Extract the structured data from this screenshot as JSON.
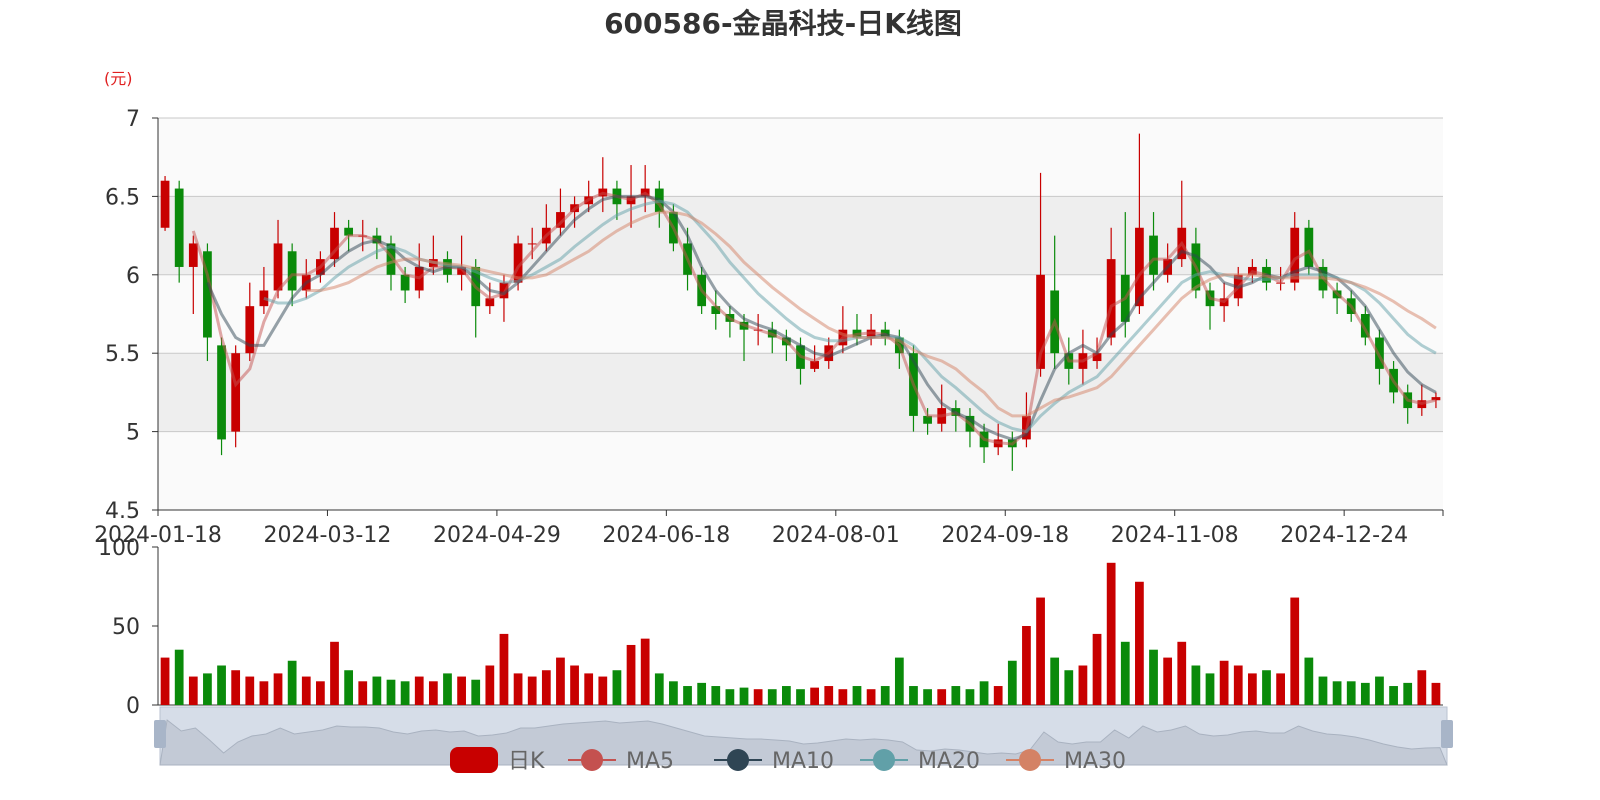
{
  "chart_data": {
    "type": "candlestick",
    "title": "600586-金晶科技-日K线图",
    "y_unit": "(元)",
    "candle_name": "日K",
    "up_color": "#c80000",
    "down_color": "#0a8a0a",
    "legend_position": "bottom",
    "split_area": true,
    "categories": [
      "2024-01-18",
      null,
      null,
      null,
      null,
      null,
      null,
      null,
      null,
      null,
      null,
      null,
      "2024-03-12",
      null,
      null,
      null,
      null,
      null,
      null,
      null,
      null,
      null,
      null,
      null,
      "2024-04-29",
      null,
      null,
      null,
      null,
      null,
      null,
      null,
      null,
      null,
      null,
      null,
      "2024-06-18",
      null,
      null,
      null,
      null,
      null,
      null,
      null,
      null,
      null,
      null,
      null,
      "2024-08-01",
      null,
      null,
      null,
      null,
      null,
      null,
      null,
      null,
      null,
      null,
      null,
      "2024-09-18",
      null,
      null,
      null,
      null,
      null,
      null,
      null,
      null,
      null,
      null,
      null,
      "2024-11-08",
      null,
      null,
      null,
      null,
      null,
      null,
      null,
      null,
      null,
      null,
      null,
      "2024-12-24",
      null,
      null,
      null,
      null,
      null,
      null
    ],
    "ohlc": [
      [
        6.3,
        6.6,
        6.28,
        6.63
      ],
      [
        6.55,
        6.05,
        5.95,
        6.6
      ],
      [
        6.05,
        6.2,
        5.75,
        6.25
      ],
      [
        6.15,
        5.6,
        5.45,
        6.2
      ],
      [
        5.55,
        4.95,
        4.85,
        5.6
      ],
      [
        5.0,
        5.5,
        4.9,
        5.55
      ],
      [
        5.5,
        5.8,
        5.45,
        5.95
      ],
      [
        5.8,
        5.9,
        5.75,
        6.05
      ],
      [
        5.9,
        6.2,
        5.85,
        6.35
      ],
      [
        6.15,
        5.9,
        5.8,
        6.2
      ],
      [
        5.9,
        6.0,
        5.85,
        6.1
      ],
      [
        6.0,
        6.1,
        5.95,
        6.15
      ],
      [
        6.1,
        6.3,
        6.05,
        6.4
      ],
      [
        6.3,
        6.25,
        6.15,
        6.35
      ],
      [
        6.25,
        6.25,
        6.15,
        6.35
      ],
      [
        6.25,
        6.2,
        6.1,
        6.3
      ],
      [
        6.2,
        6.0,
        5.9,
        6.25
      ],
      [
        6.0,
        5.9,
        5.82,
        6.05
      ],
      [
        5.9,
        6.05,
        5.85,
        6.2
      ],
      [
        6.05,
        6.1,
        6.0,
        6.25
      ],
      [
        6.1,
        6.0,
        5.95,
        6.15
      ],
      [
        6.0,
        6.05,
        5.9,
        6.25
      ],
      [
        6.05,
        5.8,
        5.6,
        6.1
      ],
      [
        5.8,
        5.85,
        5.75,
        5.95
      ],
      [
        5.85,
        5.95,
        5.7,
        6.0
      ],
      [
        5.95,
        6.2,
        5.9,
        6.25
      ],
      [
        6.2,
        6.2,
        6.1,
        6.3
      ],
      [
        6.2,
        6.3,
        6.15,
        6.45
      ],
      [
        6.3,
        6.4,
        6.25,
        6.55
      ],
      [
        6.4,
        6.45,
        6.3,
        6.5
      ],
      [
        6.45,
        6.5,
        6.4,
        6.6
      ],
      [
        6.5,
        6.55,
        6.4,
        6.75
      ],
      [
        6.55,
        6.45,
        6.35,
        6.6
      ],
      [
        6.45,
        6.5,
        6.3,
        6.7
      ],
      [
        6.5,
        6.55,
        6.4,
        6.7
      ],
      [
        6.55,
        6.4,
        6.3,
        6.6
      ],
      [
        6.4,
        6.2,
        6.15,
        6.45
      ],
      [
        6.2,
        6.0,
        5.9,
        6.3
      ],
      [
        6.0,
        5.8,
        5.75,
        6.05
      ],
      [
        5.8,
        5.75,
        5.65,
        5.9
      ],
      [
        5.75,
        5.7,
        5.6,
        5.8
      ],
      [
        5.7,
        5.65,
        5.45,
        5.75
      ],
      [
        5.65,
        5.65,
        5.55,
        5.75
      ],
      [
        5.65,
        5.6,
        5.5,
        5.7
      ],
      [
        5.6,
        5.55,
        5.45,
        5.65
      ],
      [
        5.55,
        5.4,
        5.3,
        5.6
      ],
      [
        5.4,
        5.45,
        5.38,
        5.55
      ],
      [
        5.45,
        5.55,
        5.4,
        5.6
      ],
      [
        5.55,
        5.65,
        5.5,
        5.8
      ],
      [
        5.65,
        5.6,
        5.55,
        5.75
      ],
      [
        5.6,
        5.65,
        5.55,
        5.75
      ],
      [
        5.65,
        5.6,
        5.55,
        5.7
      ],
      [
        5.6,
        5.5,
        5.4,
        5.65
      ],
      [
        5.5,
        5.1,
        5.0,
        5.55
      ],
      [
        5.1,
        5.05,
        4.98,
        5.15
      ],
      [
        5.05,
        5.15,
        5.0,
        5.3
      ],
      [
        5.15,
        5.1,
        5.0,
        5.2
      ],
      [
        5.1,
        5.0,
        4.9,
        5.15
      ],
      [
        5.0,
        4.9,
        4.8,
        5.05
      ],
      [
        4.9,
        4.95,
        4.85,
        5.05
      ],
      [
        4.95,
        4.9,
        4.75,
        5.0
      ],
      [
        4.95,
        5.1,
        4.9,
        5.25
      ],
      [
        5.4,
        6.0,
        5.35,
        6.65
      ],
      [
        5.9,
        5.5,
        5.4,
        6.25
      ],
      [
        5.5,
        5.4,
        5.3,
        5.6
      ],
      [
        5.4,
        5.5,
        5.3,
        5.65
      ],
      [
        5.45,
        5.5,
        5.4,
        5.6
      ],
      [
        5.6,
        6.1,
        5.55,
        6.3
      ],
      [
        6.0,
        5.7,
        5.6,
        6.4
      ],
      [
        5.8,
        6.3,
        5.75,
        6.9
      ],
      [
        6.25,
        6.0,
        5.9,
        6.4
      ],
      [
        6.0,
        6.1,
        5.95,
        6.2
      ],
      [
        6.1,
        6.3,
        6.05,
        6.6
      ],
      [
        6.2,
        5.9,
        5.85,
        6.3
      ],
      [
        5.9,
        5.8,
        5.65,
        5.95
      ],
      [
        5.8,
        5.85,
        5.7,
        5.95
      ],
      [
        5.85,
        6.0,
        5.8,
        6.05
      ],
      [
        6.0,
        6.05,
        5.95,
        6.1
      ],
      [
        6.05,
        5.95,
        5.9,
        6.1
      ],
      [
        5.95,
        5.95,
        5.9,
        6.05
      ],
      [
        5.95,
        6.3,
        5.9,
        6.4
      ],
      [
        6.3,
        6.05,
        6.0,
        6.35
      ],
      [
        6.05,
        5.9,
        5.85,
        6.1
      ],
      [
        5.9,
        5.85,
        5.75,
        5.95
      ],
      [
        5.85,
        5.75,
        5.7,
        5.9
      ],
      [
        5.75,
        5.6,
        5.55,
        5.8
      ],
      [
        5.6,
        5.4,
        5.3,
        5.65
      ],
      [
        5.4,
        5.25,
        5.18,
        5.45
      ],
      [
        5.25,
        5.15,
        5.05,
        5.3
      ],
      [
        5.15,
        5.2,
        5.1,
        5.3
      ],
      [
        5.2,
        5.22,
        5.15,
        5.25
      ]
    ],
    "ma": [
      {
        "name": "MA5",
        "color": "#c4514f",
        "values": [
          null,
          null,
          6.28,
          6.0,
          5.6,
          5.3,
          5.4,
          5.7,
          5.9,
          6.0,
          6.0,
          6.05,
          6.15,
          6.25,
          6.25,
          6.22,
          6.12,
          6.0,
          5.98,
          6.05,
          6.05,
          6.04,
          5.92,
          5.85,
          5.88,
          6.05,
          6.15,
          6.25,
          6.33,
          6.42,
          6.48,
          6.52,
          6.5,
          6.48,
          6.52,
          6.45,
          6.3,
          6.1,
          5.9,
          5.8,
          5.72,
          5.68,
          5.65,
          5.62,
          5.58,
          5.48,
          5.45,
          5.5,
          5.6,
          5.62,
          5.63,
          5.62,
          5.55,
          5.3,
          5.1,
          5.1,
          5.12,
          5.05,
          4.95,
          4.93,
          4.92,
          5.0,
          5.5,
          5.7,
          5.45,
          5.45,
          5.5,
          5.8,
          5.85,
          6.0,
          6.1,
          6.1,
          6.2,
          6.05,
          5.85,
          5.83,
          5.92,
          6.02,
          6.0,
          5.95,
          6.1,
          6.15,
          5.98,
          5.88,
          5.8,
          5.65,
          5.48,
          5.32,
          5.2,
          5.18,
          5.2
        ]
      },
      {
        "name": "MA10",
        "color": "#2f4554",
        "values": [
          null,
          null,
          null,
          5.95,
          5.75,
          5.6,
          5.55,
          5.55,
          5.7,
          5.85,
          5.95,
          6.0,
          6.08,
          6.15,
          6.2,
          6.22,
          6.18,
          6.1,
          6.05,
          6.02,
          6.05,
          6.05,
          5.98,
          5.9,
          5.88,
          5.95,
          6.05,
          6.15,
          6.25,
          6.35,
          6.42,
          6.48,
          6.5,
          6.5,
          6.5,
          6.48,
          6.4,
          6.25,
          6.05,
          5.9,
          5.8,
          5.72,
          5.68,
          5.65,
          5.6,
          5.55,
          5.5,
          5.48,
          5.52,
          5.56,
          5.6,
          5.62,
          5.6,
          5.45,
          5.3,
          5.18,
          5.12,
          5.08,
          5.02,
          4.98,
          4.95,
          4.98,
          5.2,
          5.4,
          5.5,
          5.55,
          5.5,
          5.62,
          5.7,
          5.85,
          5.95,
          6.05,
          6.15,
          6.12,
          6.05,
          5.95,
          5.92,
          5.95,
          6.0,
          5.98,
          6.02,
          6.05,
          6.02,
          5.98,
          5.9,
          5.8,
          5.65,
          5.5,
          5.38,
          5.3,
          5.25
        ]
      },
      {
        "name": "MA20",
        "color": "#61a0a8",
        "values": [
          null,
          null,
          null,
          null,
          null,
          null,
          null,
          5.85,
          5.82,
          5.82,
          5.85,
          5.9,
          5.98,
          6.05,
          6.1,
          6.15,
          6.18,
          6.15,
          6.1,
          6.08,
          6.06,
          6.05,
          6.02,
          5.98,
          5.95,
          5.96,
          6.0,
          6.05,
          6.1,
          6.18,
          6.25,
          6.32,
          6.38,
          6.42,
          6.45,
          6.47,
          6.45,
          6.4,
          6.3,
          6.2,
          6.08,
          5.98,
          5.88,
          5.8,
          5.72,
          5.65,
          5.6,
          5.58,
          5.58,
          5.6,
          5.6,
          5.6,
          5.6,
          5.55,
          5.45,
          5.35,
          5.28,
          5.2,
          5.12,
          5.06,
          5.02,
          5.0,
          5.1,
          5.18,
          5.25,
          5.3,
          5.35,
          5.45,
          5.55,
          5.65,
          5.75,
          5.85,
          5.95,
          6.0,
          6.02,
          6.0,
          5.98,
          5.97,
          5.97,
          5.98,
          6.0,
          6.0,
          6.0,
          5.98,
          5.95,
          5.9,
          5.82,
          5.72,
          5.62,
          5.55,
          5.5
        ]
      },
      {
        "name": "MA30",
        "color": "#d48265",
        "values": [
          null,
          null,
          null,
          null,
          null,
          null,
          null,
          null,
          null,
          null,
          5.9,
          5.9,
          5.92,
          5.95,
          6.0,
          6.05,
          6.08,
          6.1,
          6.1,
          6.08,
          6.07,
          6.06,
          6.04,
          6.02,
          6.0,
          5.98,
          5.98,
          6.0,
          6.05,
          6.1,
          6.15,
          6.22,
          6.28,
          6.33,
          6.37,
          6.4,
          6.4,
          6.38,
          6.33,
          6.26,
          6.18,
          6.08,
          6.0,
          5.92,
          5.85,
          5.78,
          5.72,
          5.66,
          5.62,
          5.6,
          5.6,
          5.6,
          5.58,
          5.52,
          5.48,
          5.45,
          5.4,
          5.32,
          5.25,
          5.15,
          5.1,
          5.1,
          5.15,
          5.2,
          5.22,
          5.25,
          5.28,
          5.35,
          5.45,
          5.55,
          5.65,
          5.75,
          5.85,
          5.92,
          5.97,
          6.0,
          6.0,
          6.0,
          5.99,
          5.98,
          5.98,
          5.98,
          5.98,
          5.97,
          5.95,
          5.92,
          5.88,
          5.83,
          5.77,
          5.72,
          5.66
        ]
      }
    ],
    "ylim": [
      4.5,
      7
    ],
    "yticks": [
      4.5,
      5,
      5.5,
      6,
      6.5,
      7
    ],
    "volume": {
      "values": [
        30,
        35,
        18,
        20,
        25,
        22,
        18,
        15,
        20,
        28,
        18,
        15,
        40,
        22,
        15,
        18,
        16,
        15,
        18,
        15,
        20,
        18,
        16,
        25,
        45,
        20,
        18,
        22,
        30,
        25,
        20,
        18,
        22,
        38,
        42,
        20,
        15,
        12,
        14,
        12,
        10,
        11,
        10,
        10,
        12,
        10,
        11,
        12,
        10,
        12,
        10,
        12,
        30,
        12,
        10,
        10,
        12,
        10,
        15,
        12,
        28,
        50,
        68,
        30,
        22,
        25,
        45,
        90,
        40,
        78,
        35,
        30,
        40,
        25,
        20,
        28,
        25,
        20,
        22,
        20,
        68,
        30,
        18,
        15,
        15,
        14,
        18,
        12,
        14,
        22,
        14
      ],
      "ylim": [
        0,
        100
      ],
      "yticks": [
        0,
        50,
        100
      ]
    }
  }
}
